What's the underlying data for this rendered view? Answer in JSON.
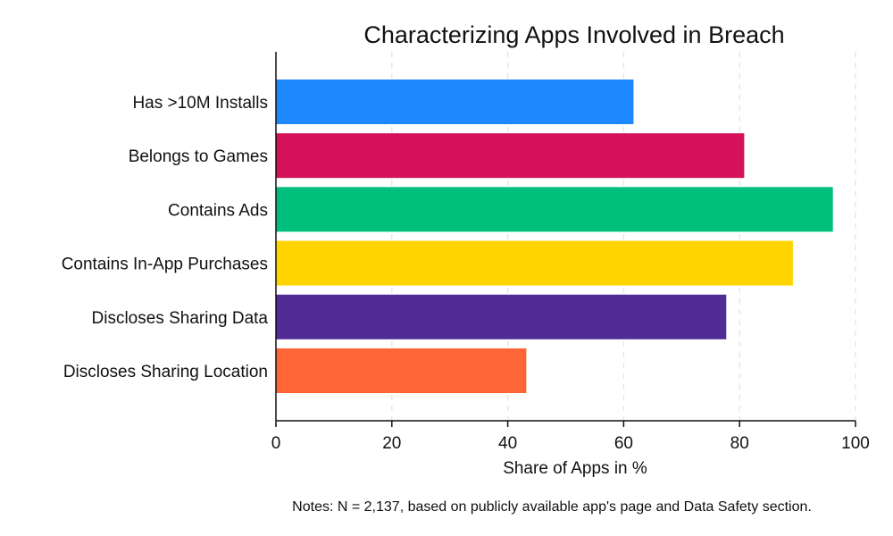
{
  "chart_data": {
    "type": "bar",
    "orientation": "horizontal",
    "title": "Characterizing Apps Involved in Breach",
    "xlabel": "Share of Apps in %",
    "ylabel": "",
    "xlim": [
      0,
      100
    ],
    "xticks": [
      0,
      20,
      40,
      60,
      80,
      100
    ],
    "grid": true,
    "categories": [
      "Has >10M Installs",
      "Belongs to Games",
      "Contains Ads",
      "Contains In-App Purchases",
      "Discloses Sharing Data",
      "Discloses Sharing Location"
    ],
    "values": [
      61.7,
      80.8,
      96.1,
      89.2,
      77.7,
      43.2
    ],
    "colors": [
      "#1E88FF",
      "#D41159",
      "#00BF7D",
      "#FFD400",
      "#512C96",
      "#FF6537"
    ],
    "note": "Notes: N = 2,137, based on publicly available app's page and Data Safety section."
  }
}
